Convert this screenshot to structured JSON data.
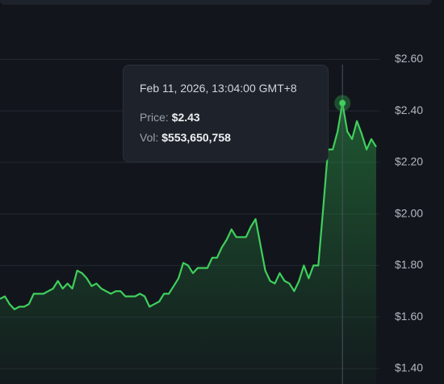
{
  "chart_data": {
    "type": "line",
    "values": [
      1.67,
      1.68,
      1.65,
      1.63,
      1.64,
      1.64,
      1.65,
      1.69,
      1.69,
      1.69,
      1.7,
      1.71,
      1.74,
      1.71,
      1.73,
      1.71,
      1.78,
      1.77,
      1.75,
      1.72,
      1.73,
      1.71,
      1.7,
      1.69,
      1.7,
      1.7,
      1.68,
      1.68,
      1.68,
      1.69,
      1.68,
      1.64,
      1.65,
      1.66,
      1.69,
      1.69,
      1.72,
      1.75,
      1.81,
      1.8,
      1.77,
      1.79,
      1.79,
      1.79,
      1.83,
      1.83,
      1.87,
      1.9,
      1.94,
      1.91,
      1.91,
      1.91,
      1.95,
      1.98,
      1.88,
      1.78,
      1.74,
      1.73,
      1.77,
      1.74,
      1.73,
      1.7,
      1.74,
      1.8,
      1.75,
      1.8,
      1.8,
      2.02,
      2.25,
      2.25,
      2.32,
      2.43,
      2.32,
      2.29,
      2.36,
      2.31,
      2.25,
      2.29,
      2.26
    ],
    "color": "#3fcf5c",
    "ylim": [
      1.34,
      2.83
    ],
    "yticks": [
      {
        "value": 1.4,
        "label": "$1.40"
      },
      {
        "value": 1.6,
        "label": "$1.60"
      },
      {
        "value": 1.8,
        "label": "$1.80"
      },
      {
        "value": 2.0,
        "label": "$2.00"
      },
      {
        "value": 2.2,
        "label": "$2.20"
      },
      {
        "value": 2.4,
        "label": "$2.40"
      },
      {
        "value": 2.6,
        "label": "$2.60"
      }
    ],
    "grid": true,
    "tooltip": {
      "title": "Feb 11, 2026, 13:04:00 GMT+8",
      "price_name": "Price:",
      "price": {
        "value": 2.43,
        "label": "$2.43"
      },
      "vol_name": "Vol:",
      "vol": {
        "value": 553650758,
        "label": "$553,650,758"
      }
    }
  }
}
